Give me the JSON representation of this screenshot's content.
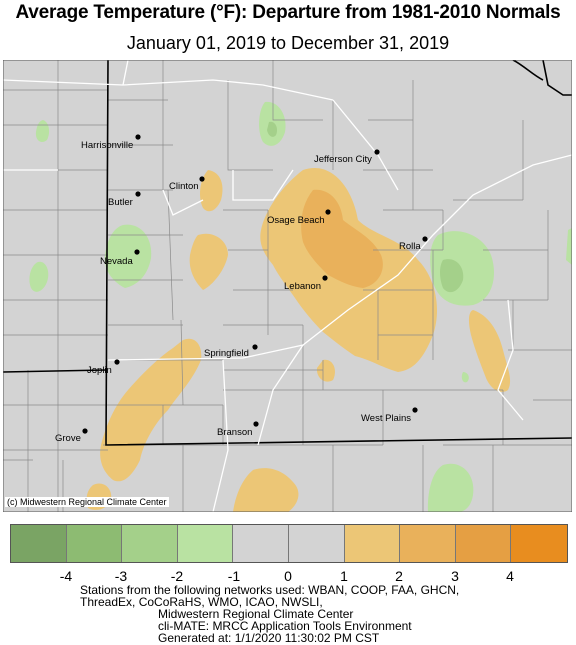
{
  "title": "Average Temperature (°F): Departure from 1981-2010 Normals",
  "subtitle": "January 01, 2019 to December 31, 2019",
  "credit": "(c) Midwestern Regional Climate Center",
  "cities": [
    {
      "name": "Harrisonville"
    },
    {
      "name": "Clinton"
    },
    {
      "name": "Butler"
    },
    {
      "name": "Nevada"
    },
    {
      "name": "Jefferson City"
    },
    {
      "name": "Osage Beach"
    },
    {
      "name": "Rolla"
    },
    {
      "name": "Lebanon"
    },
    {
      "name": "Springfield"
    },
    {
      "name": "Joplin"
    },
    {
      "name": "West Plains"
    },
    {
      "name": "Branson"
    },
    {
      "name": "Grove"
    }
  ],
  "legend": {
    "colors": [
      "#7aa464",
      "#8dbb72",
      "#a4d08a",
      "#b9e2a2",
      "#d3d3d3",
      "#d3d3d3",
      "#ecc676",
      "#e9b15b",
      "#e59f43",
      "#e88d1f"
    ],
    "ticks": [
      "-4",
      "-3",
      "-2",
      "-1",
      "0",
      "1",
      "2",
      "3",
      "4"
    ]
  },
  "footer": {
    "line1": "Stations from the following networks used: WBAN, COOP, FAA, GHCN,",
    "line2": "ThreadEx, CoCoRaHS, WMO, ICAO, NWSLI,",
    "line3": "Midwestern Regional Climate Center",
    "line4": "cli-MATE: MRCC Application Tools Environment",
    "line5": "Generated at: 1/1/2020 11:30:02 PM CST"
  }
}
